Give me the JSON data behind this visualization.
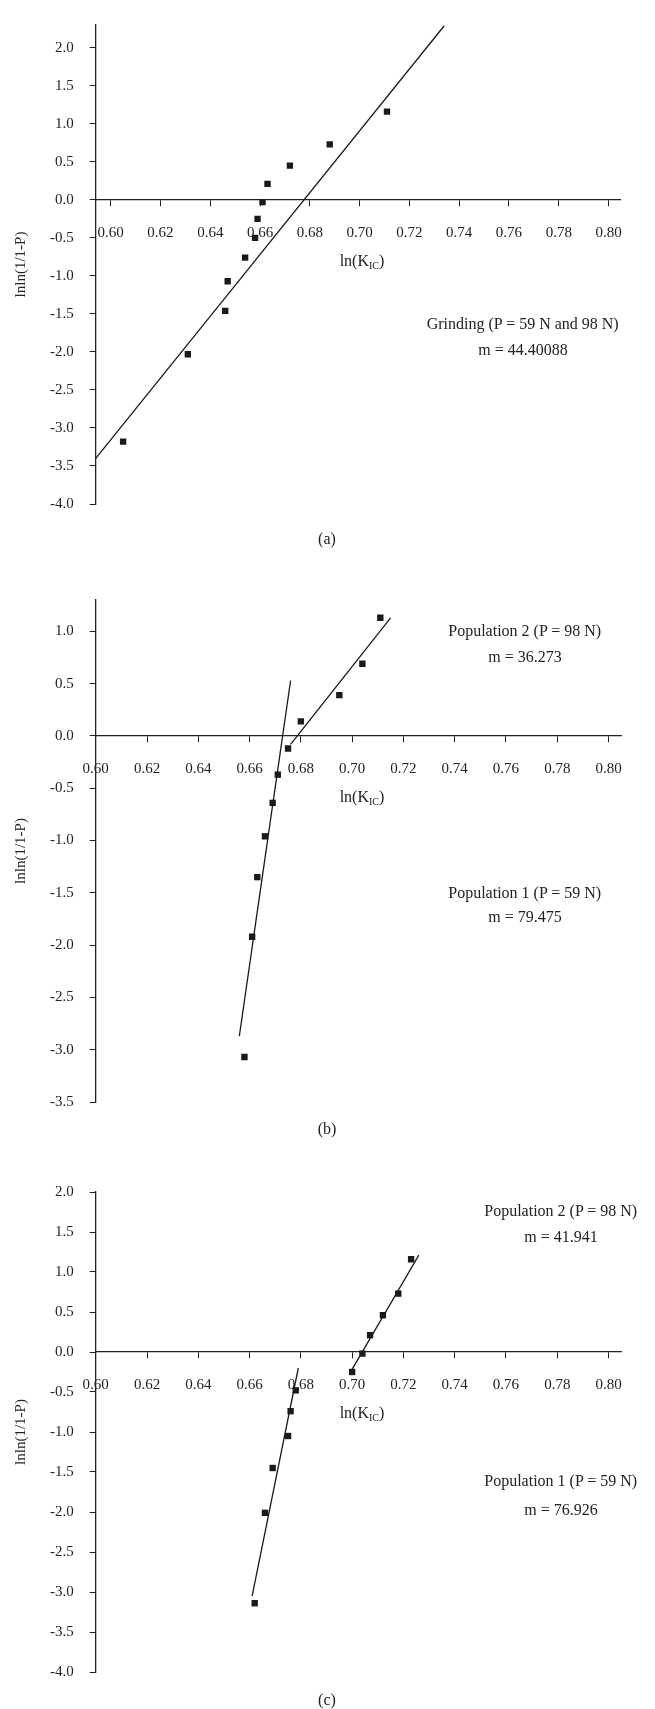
{
  "chart_data": [
    {
      "type": "scatter",
      "xlabel": "ln(K$_{IC}$)",
      "ylabel": "lnln(1/1-P)",
      "grid": false,
      "legend": false,
      "xlim": [
        0.594,
        0.805
      ],
      "ylim": [
        -4.0,
        2.3
      ],
      "xticks": [
        {
          "value": 0.6,
          "label": "0.60"
        },
        {
          "value": 0.62,
          "label": "0.62"
        },
        {
          "value": 0.64,
          "label": "0.64"
        },
        {
          "value": 0.66,
          "label": "0.66"
        },
        {
          "value": 0.68,
          "label": "0.68"
        },
        {
          "value": 0.7,
          "label": "0.70"
        },
        {
          "value": 0.72,
          "label": "0.72"
        },
        {
          "value": 0.74,
          "label": "0.74"
        },
        {
          "value": 0.76,
          "label": "0.76"
        },
        {
          "value": 0.78,
          "label": "0.78"
        },
        {
          "value": 0.8,
          "label": "0.80"
        }
      ],
      "yticks": [
        {
          "value": 2,
          "label": "2.0"
        },
        {
          "value": 1.5,
          "label": "1.5"
        },
        {
          "value": 1,
          "label": "1.0"
        },
        {
          "value": 0.5,
          "label": "0.5"
        },
        {
          "value": 0,
          "label": "0.0"
        },
        {
          "value": -0.5,
          "label": "-0.5"
        },
        {
          "value": -1,
          "label": "-1.0"
        },
        {
          "value": -1.5,
          "label": "-1.5"
        },
        {
          "value": -2,
          "label": "-2.0"
        },
        {
          "value": -2.5,
          "label": "-2.5"
        },
        {
          "value": -3,
          "label": "-3.0"
        },
        {
          "value": -3.5,
          "label": "-3.5"
        },
        {
          "value": -4,
          "label": "-4.0"
        }
      ],
      "series": [
        {
          "type": "scatter",
          "marker": "square",
          "color": "#1a1a1a",
          "x": [
            0.605,
            0.631,
            0.646,
            0.647,
            0.654,
            0.658,
            0.659,
            0.661,
            0.663,
            0.672,
            0.688,
            0.711
          ],
          "values": [
            -3.18,
            -2.03,
            -1.46,
            -1.07,
            -0.76,
            -0.5,
            -0.25,
            -0.03,
            0.21,
            0.45,
            0.73,
            1.16
          ]
        },
        {
          "type": "line",
          "marker": "none",
          "color": "#1a1a1a",
          "x": [
            0.594,
            0.734
          ],
          "values": [
            -3.4,
            2.29
          ]
        }
      ],
      "annotations": [
        "Grinding (P = 59 N and 98 N)",
        "m = 44.40088",
        "(a)"
      ]
    },
    {
      "type": "scatter",
      "xlabel": "ln(K$_{IC}$)",
      "ylabel": "lnln(1/1-P)",
      "grid": false,
      "legend": false,
      "xlim": [
        0.6,
        0.805
      ],
      "ylim": [
        -3.5,
        1.3
      ],
      "xticks": [
        {
          "value": 0.6,
          "label": "0.60"
        },
        {
          "value": 0.62,
          "label": "0.62"
        },
        {
          "value": 0.64,
          "label": "0.64"
        },
        {
          "value": 0.66,
          "label": "0.66"
        },
        {
          "value": 0.68,
          "label": "0.68"
        },
        {
          "value": 0.7,
          "label": "0.70"
        },
        {
          "value": 0.72,
          "label": "0.72"
        },
        {
          "value": 0.74,
          "label": "0.74"
        },
        {
          "value": 0.76,
          "label": "0.76"
        },
        {
          "value": 0.78,
          "label": "0.78"
        },
        {
          "value": 0.8,
          "label": "0.80"
        }
      ],
      "yticks": [
        {
          "value": 1,
          "label": "1.0"
        },
        {
          "value": 0.5,
          "label": "0.5"
        },
        {
          "value": 0,
          "label": "0.0"
        },
        {
          "value": -0.5,
          "label": "-0.5"
        },
        {
          "value": -1,
          "label": "-1.0"
        },
        {
          "value": -1.5,
          "label": "-1.5"
        },
        {
          "value": -2,
          "label": "-2.0"
        },
        {
          "value": -2.5,
          "label": "-2.5"
        },
        {
          "value": -3,
          "label": "-3.0"
        },
        {
          "value": -3.5,
          "label": "-3.5"
        }
      ],
      "series": [
        {
          "type": "scatter",
          "marker": "square",
          "color": "#1a1a1a",
          "x": [
            0.658,
            0.661,
            0.663,
            0.666,
            0.669,
            0.671,
            0.675,
            0.68,
            0.695,
            0.704,
            0.711
          ],
          "values": [
            -3.07,
            -1.92,
            -1.35,
            -0.96,
            -0.64,
            -0.37,
            -0.12,
            0.14,
            0.39,
            0.69,
            1.13
          ]
        },
        {
          "type": "line",
          "marker": "none",
          "color": "#1a1a1a",
          "x": [
            0.656,
            0.676
          ],
          "values": [
            -2.87,
            0.53
          ]
        },
        {
          "type": "line",
          "marker": "none",
          "color": "#1a1a1a",
          "x": [
            0.676,
            0.715
          ],
          "values": [
            -0.08,
            1.13
          ]
        }
      ],
      "annotations": [
        "Population 2 (P = 98 N)",
        "m = 36.273",
        "Population 1 (P = 59 N)",
        "m = 79.475",
        "(b)"
      ]
    },
    {
      "type": "scatter",
      "xlabel": "ln(K$_{IC}$)",
      "ylabel": "lnln(1/1-P)",
      "grid": false,
      "legend": false,
      "xlim": [
        0.6,
        0.805
      ],
      "ylim": [
        -4.0,
        2.0
      ],
      "xticks": [
        {
          "value": 0.6,
          "label": "0.60"
        },
        {
          "value": 0.62,
          "label": "0.62"
        },
        {
          "value": 0.64,
          "label": "0.64"
        },
        {
          "value": 0.66,
          "label": "0.66"
        },
        {
          "value": 0.68,
          "label": "0.68"
        },
        {
          "value": 0.7,
          "label": "0.70"
        },
        {
          "value": 0.72,
          "label": "0.72"
        },
        {
          "value": 0.74,
          "label": "0.74"
        },
        {
          "value": 0.76,
          "label": "0.76"
        },
        {
          "value": 0.78,
          "label": "0.78"
        },
        {
          "value": 0.8,
          "label": "0.80"
        }
      ],
      "yticks": [
        {
          "value": 2,
          "label": "2.0"
        },
        {
          "value": 1.5,
          "label": "1.5"
        },
        {
          "value": 1,
          "label": "1.0"
        },
        {
          "value": 0.5,
          "label": "0.5"
        },
        {
          "value": 0,
          "label": "0.0"
        },
        {
          "value": -0.5,
          "label": "-0.5"
        },
        {
          "value": -1,
          "label": "-1.0"
        },
        {
          "value": -1.5,
          "label": "-1.5"
        },
        {
          "value": -2,
          "label": "-2.0"
        },
        {
          "value": -2.5,
          "label": "-2.5"
        },
        {
          "value": -3,
          "label": "-3.0"
        },
        {
          "value": -3.5,
          "label": "-3.5"
        },
        {
          "value": -4,
          "label": "-4.0"
        }
      ],
      "series": [
        {
          "type": "scatter",
          "marker": "square",
          "color": "#1a1a1a",
          "x": [
            0.662,
            0.666,
            0.669,
            0.675,
            0.676,
            0.678,
            0.7,
            0.704,
            0.707,
            0.712,
            0.718,
            0.723
          ],
          "values": [
            -3.14,
            -2.01,
            -1.45,
            -1.05,
            -0.74,
            -0.48,
            -0.25,
            -0.02,
            0.21,
            0.46,
            0.73,
            1.16
          ]
        },
        {
          "type": "line",
          "marker": "none",
          "color": "#1a1a1a",
          "x": [
            0.661,
            0.679
          ],
          "values": [
            -3.05,
            -0.2
          ]
        },
        {
          "type": "line",
          "marker": "none",
          "color": "#1a1a1a",
          "x": [
            0.699,
            0.726
          ],
          "values": [
            -0.27,
            1.21
          ]
        }
      ],
      "annotations": [
        "Population 2 (P = 98 N)",
        "m = 41.941",
        "Population 1 (P = 59 N)",
        "m = 76.926",
        "(c)"
      ]
    }
  ]
}
